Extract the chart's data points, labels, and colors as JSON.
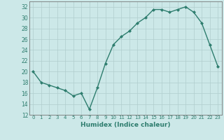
{
  "x": [
    0,
    1,
    2,
    3,
    4,
    5,
    6,
    7,
    8,
    9,
    10,
    11,
    12,
    13,
    14,
    15,
    16,
    17,
    18,
    19,
    20,
    21,
    22,
    23
  ],
  "y": [
    20,
    18,
    17.5,
    17,
    16.5,
    15.5,
    16,
    13,
    17,
    21.5,
    25,
    26.5,
    27.5,
    29,
    30,
    31.5,
    31.5,
    31,
    31.5,
    32,
    31,
    29,
    25,
    21
  ],
  "xlabel": "Humidex (Indice chaleur)",
  "xlim": [
    -0.5,
    23.5
  ],
  "ylim": [
    12,
    33
  ],
  "yticks": [
    12,
    14,
    16,
    18,
    20,
    22,
    24,
    26,
    28,
    30,
    32
  ],
  "xtick_labels": [
    "0",
    "1",
    "2",
    "3",
    "4",
    "5",
    "6",
    "7",
    "8",
    "9",
    "10",
    "11",
    "12",
    "13",
    "14",
    "15",
    "16",
    "17",
    "18",
    "19",
    "20",
    "21",
    "22",
    "23"
  ],
  "line_color": "#2e7d6e",
  "marker_color": "#2e7d6e",
  "bg_color": "#cce8e8",
  "grid_color": "#b0cdcd",
  "spine_color": "#777777"
}
